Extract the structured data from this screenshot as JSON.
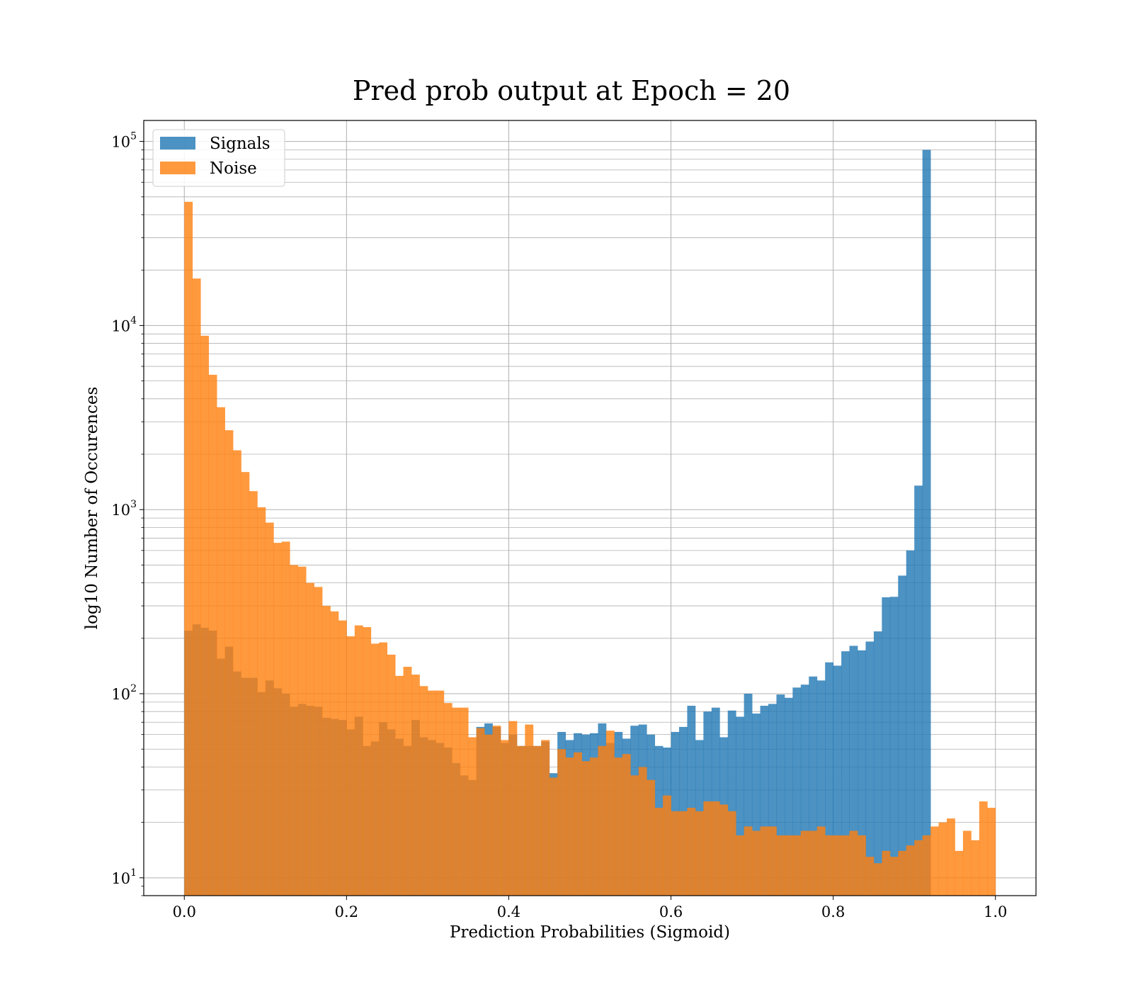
{
  "chart_data": {
    "type": "histogram",
    "title": "Pred prob output at Epoch = 20",
    "xlabel": "Prediction Probabilities (Sigmoid)",
    "ylabel": "log10 Number of Occurences",
    "y_scale": "log",
    "xlim": [
      -0.05,
      1.05
    ],
    "ylim": [
      8,
      130000
    ],
    "bins": 100,
    "bin_range": [
      0,
      1
    ],
    "x_ticks": [
      "0.0",
      "0.2",
      "0.4",
      "0.6",
      "0.8",
      "1.0"
    ],
    "x_tick_values": [
      0,
      0.2,
      0.4,
      0.6,
      0.8,
      1.0
    ],
    "y_ticks": [
      {
        "value": 10,
        "base": "10",
        "exp": "1"
      },
      {
        "value": 100,
        "base": "10",
        "exp": "2"
      },
      {
        "value": 1000,
        "base": "10",
        "exp": "3"
      },
      {
        "value": 10000,
        "base": "10",
        "exp": "4"
      },
      {
        "value": 100000,
        "base": "10",
        "exp": "5"
      }
    ],
    "grid": true,
    "legend_position": "top-left",
    "series": [
      {
        "name": "Signals",
        "color": "#1f77b4",
        "values": [
          220,
          238,
          228,
          220,
          155,
          180,
          132,
          122,
          122,
          102,
          118,
          107,
          100,
          85,
          88,
          86,
          85,
          74,
          73,
          72,
          64,
          75,
          52,
          55,
          70,
          64,
          57,
          52,
          72,
          58,
          56,
          54,
          51,
          42,
          36,
          34,
          66,
          69,
          66,
          54,
          60,
          52,
          52,
          52,
          55,
          37,
          62,
          56,
          61,
          60,
          61,
          69,
          54,
          62,
          57,
          67,
          68,
          60,
          52,
          51,
          62,
          66,
          86,
          56,
          80,
          84,
          58,
          81,
          75,
          100,
          78,
          86,
          88,
          99,
          95,
          108,
          112,
          124,
          118,
          148,
          142,
          170,
          182,
          172,
          192,
          218,
          334,
          336,
          438,
          600,
          1350,
          90000,
          0,
          0,
          0,
          0,
          0,
          0,
          0,
          0
        ],
        "values_note": ""
      },
      {
        "name": "Noise",
        "color": "#ff7f0e",
        "values": [
          47000,
          18000,
          8800,
          5400,
          3600,
          2700,
          2100,
          1600,
          1260,
          1030,
          850,
          660,
          670,
          500,
          490,
          400,
          380,
          300,
          280,
          250,
          205,
          235,
          230,
          187,
          190,
          163,
          125,
          140,
          127,
          110,
          104,
          104,
          89,
          84,
          84,
          58,
          65,
          60,
          67,
          56,
          71,
          52,
          68,
          52,
          56,
          35,
          50,
          45,
          48,
          43,
          45,
          52,
          63,
          45,
          47,
          36,
          40,
          34,
          24,
          28,
          23,
          23,
          24,
          23,
          26,
          26,
          25,
          23,
          17,
          19,
          18,
          19,
          19,
          17,
          17,
          17,
          18,
          18,
          19,
          17,
          17,
          17,
          18,
          17,
          13,
          12,
          14,
          13,
          14,
          15,
          16,
          17,
          19,
          20,
          21,
          14,
          18,
          16,
          26,
          24
        ]
      }
    ]
  }
}
